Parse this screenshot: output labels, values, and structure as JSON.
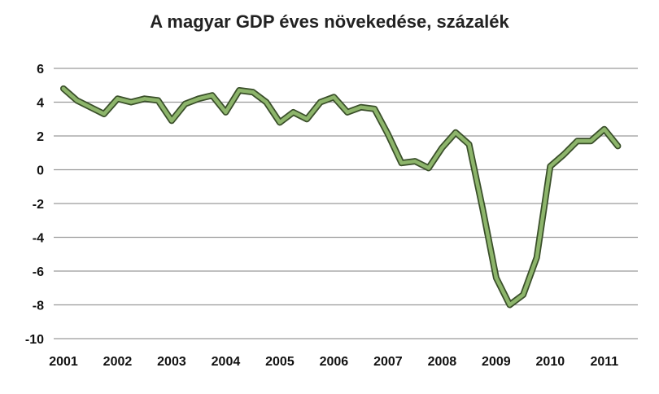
{
  "chart_data": {
    "type": "line",
    "title": "A magyar GDP éves növekedése, százalék",
    "xlabel": "",
    "ylabel": "",
    "ylim": [
      -10,
      6
    ],
    "yticks": [
      6,
      4,
      2,
      0,
      -2,
      -4,
      -6,
      -8,
      -10
    ],
    "xtick_labels": [
      "2001",
      "2002",
      "2003",
      "2004",
      "2005",
      "2006",
      "2007",
      "2008",
      "2009",
      "2010",
      "2011"
    ],
    "grid": true,
    "legend": "none",
    "line_color": "#8db56b",
    "line_outline_color": "#3a4f2a",
    "series": [
      {
        "x": [
          "2001Q1",
          "2001Q2",
          "2001Q3",
          "2001Q4",
          "2002Q1",
          "2002Q2",
          "2002Q3",
          "2002Q4",
          "2003Q1",
          "2003Q2",
          "2003Q3",
          "2003Q4",
          "2004Q1",
          "2004Q2",
          "2004Q3",
          "2004Q4",
          "2005Q1",
          "2005Q2",
          "2005Q3",
          "2005Q4",
          "2006Q1",
          "2006Q2",
          "2006Q3",
          "2006Q4",
          "2007Q1",
          "2007Q2",
          "2007Q3",
          "2007Q4",
          "2008Q1",
          "2008Q2",
          "2008Q3",
          "2008Q4",
          "2009Q1",
          "2009Q2",
          "2009Q3",
          "2009Q4",
          "2010Q1",
          "2010Q2",
          "2010Q3",
          "2010Q4",
          "2011Q1",
          "2011Q2"
        ],
        "values": [
          4.8,
          4.1,
          3.7,
          3.3,
          4.2,
          4.0,
          4.2,
          4.1,
          2.9,
          3.9,
          4.2,
          4.4,
          3.4,
          4.7,
          4.6,
          4.0,
          2.8,
          3.4,
          3.0,
          4.0,
          4.3,
          3.4,
          3.7,
          3.6,
          2.1,
          0.4,
          0.5,
          0.1,
          1.3,
          2.2,
          1.5,
          -2.3,
          -6.4,
          -8.0,
          -7.4,
          -5.2,
          0.2,
          0.9,
          1.7,
          1.7,
          2.4,
          1.4
        ]
      }
    ]
  }
}
